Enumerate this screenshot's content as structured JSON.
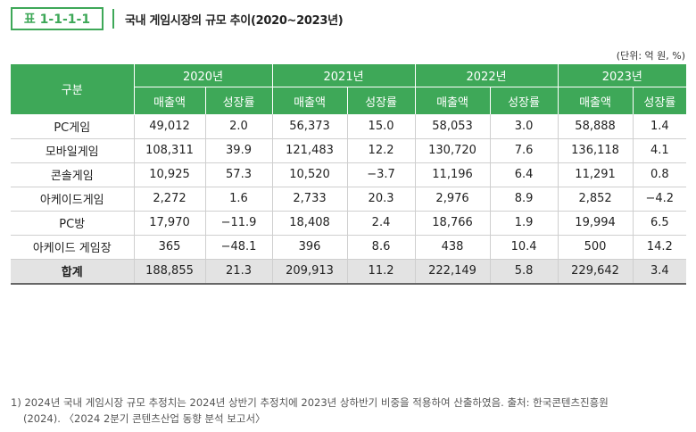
{
  "caption": {
    "label": "표 1-1-1-1",
    "title": "국내 게임시장의 규모 추이(2020~2023년)"
  },
  "unit": "(단위: 억 원, %)",
  "table": {
    "category_header": "구분",
    "years": [
      "2020년",
      "2021년",
      "2022년",
      "2023년"
    ],
    "sub_headers": [
      "매출액",
      "성장률"
    ],
    "rows": [
      {
        "name": "PC게임",
        "values": [
          "49,012",
          "2.0",
          "56,373",
          "15.0",
          "58,053",
          "3.0",
          "58,888",
          "1.4"
        ]
      },
      {
        "name": "모바일게임",
        "values": [
          "108,311",
          "39.9",
          "121,483",
          "12.2",
          "130,720",
          "7.6",
          "136,118",
          "4.1"
        ]
      },
      {
        "name": "콘솔게임",
        "values": [
          "10,925",
          "57.3",
          "10,520",
          "−3.7",
          "11,196",
          "6.4",
          "11,291",
          "0.8"
        ]
      },
      {
        "name": "아케이드게임",
        "values": [
          "2,272",
          "1.6",
          "2,733",
          "20.3",
          "2,976",
          "8.9",
          "2,852",
          "−4.2"
        ]
      },
      {
        "name": "PC방",
        "values": [
          "17,970",
          "−11.9",
          "18,408",
          "2.4",
          "18,766",
          "1.9",
          "19,994",
          "6.5"
        ]
      },
      {
        "name": "아케이드 게임장",
        "values": [
          "365",
          "−48.1",
          "396",
          "8.6",
          "438",
          "10.4",
          "500",
          "14.2"
        ]
      }
    ],
    "total": {
      "name": "합계",
      "values": [
        "188,855",
        "21.3",
        "209,913",
        "11.2",
        "222,149",
        "5.8",
        "229,642",
        "3.4"
      ]
    }
  },
  "note": {
    "line1": "1) 2024년 국내 게임시장 규모 추정치는 2024년 상반기 추정치에 2023년 상하반기 비중을 적용하여 산출하였음. 출처: 한국콘텐츠진흥원",
    "line2": "(2024). 〈2024 2분기 콘텐츠산업 동향 분석 보고서〉"
  }
}
